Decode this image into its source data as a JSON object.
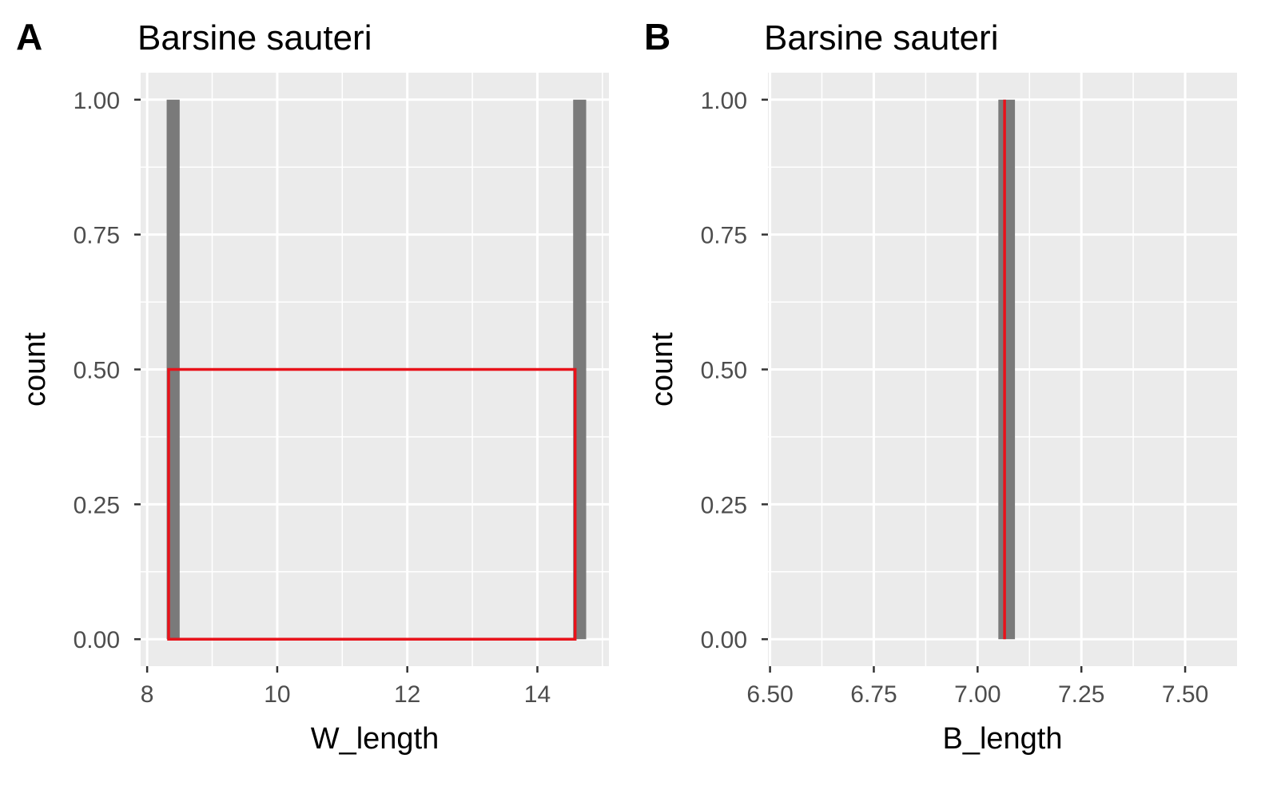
{
  "chart_data": [
    {
      "panel": "A",
      "title": "Barsine sauteri",
      "type": "bar",
      "xlabel": "W_length",
      "ylabel": "count",
      "xlim": [
        7.9,
        15.1
      ],
      "ylim": [
        -0.05,
        1.05
      ],
      "x_ticks": [
        8,
        10,
        12,
        14
      ],
      "x_tick_labels": [
        "8",
        "10",
        "12",
        "14"
      ],
      "y_ticks": [
        0,
        0.25,
        0.5,
        0.75,
        1
      ],
      "y_tick_labels": [
        "0.00",
        "0.25",
        "0.50",
        "0.75",
        "1.00"
      ],
      "bars": [
        {
          "x": 8.4,
          "width": 0.2,
          "count": 1
        },
        {
          "x": 14.65,
          "width": 0.2,
          "count": 1
        }
      ],
      "bar_color": "#7a7a7a",
      "overlay": {
        "type": "box",
        "x_min": 8.33,
        "x_max": 14.58,
        "y_min": 0,
        "y_max": 0.5,
        "color": "#e8121a"
      },
      "grid": true,
      "panel_background": "#ebebeb"
    },
    {
      "panel": "B",
      "title": "Barsine sauteri",
      "type": "bar",
      "xlabel": "B_length",
      "ylabel": "count",
      "xlim": [
        6.495,
        7.625
      ],
      "ylim": [
        -0.05,
        1.05
      ],
      "x_ticks": [
        6.5,
        6.75,
        7.0,
        7.25,
        7.5
      ],
      "x_tick_labels": [
        "6.50",
        "6.75",
        "7.00",
        "7.25",
        "7.50"
      ],
      "y_ticks": [
        0,
        0.25,
        0.5,
        0.75,
        1
      ],
      "y_tick_labels": [
        "0.00",
        "0.25",
        "0.50",
        "0.75",
        "1.00"
      ],
      "bars": [
        {
          "x": 7.07,
          "width": 0.04,
          "count": 1
        }
      ],
      "bar_color": "#7a7a7a",
      "overlay": {
        "type": "vline",
        "x": 7.065,
        "y_min": 0,
        "y_max": 1,
        "color": "#e8121a"
      },
      "grid": true,
      "panel_background": "#ebebeb"
    }
  ]
}
